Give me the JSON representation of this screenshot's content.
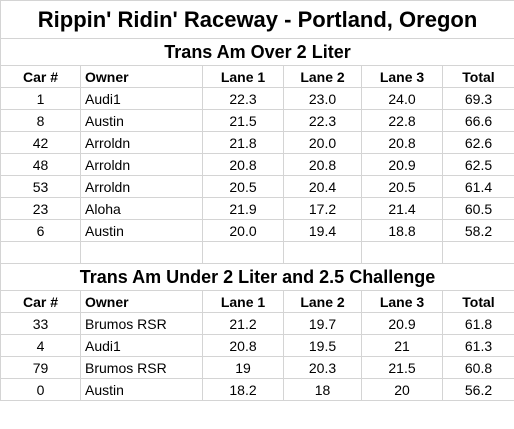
{
  "title": "Rippin' Ridin' Raceway - Portland, Oregon",
  "section1": {
    "heading": "Trans Am Over 2 Liter",
    "columns": [
      "Car #",
      "Owner",
      "Lane 1",
      "Lane 2",
      "Lane 3",
      "Total"
    ],
    "rows": [
      [
        "1",
        "Audi1",
        "22.3",
        "23.0",
        "24.0",
        "69.3"
      ],
      [
        "8",
        "Austin",
        "21.5",
        "22.3",
        "22.8",
        "66.6"
      ],
      [
        "42",
        "Arroldn",
        "21.8",
        "20.0",
        "20.8",
        "62.6"
      ],
      [
        "48",
        "Arroldn",
        "20.8",
        "20.8",
        "20.9",
        "62.5"
      ],
      [
        "53",
        "Arroldn",
        "20.5",
        "20.4",
        "20.5",
        "61.4"
      ],
      [
        "23",
        "Aloha",
        "21.9",
        "17.2",
        "21.4",
        "60.5"
      ],
      [
        "6",
        "Austin",
        "20.0",
        "19.4",
        "18.8",
        "58.2"
      ]
    ]
  },
  "section2": {
    "heading": "Trans Am Under 2 Liter and 2.5 Challenge",
    "columns": [
      "Car #",
      "Owner",
      "Lane 1",
      "Lane 2",
      "Lane 3",
      "Total"
    ],
    "rows": [
      [
        "33",
        "Brumos RSR",
        "21.2",
        "19.7",
        "20.9",
        "61.8"
      ],
      [
        "4",
        "Audi1",
        "20.8",
        "19.5",
        "21",
        "61.3"
      ],
      [
        "79",
        "Brumos RSR",
        "19",
        "20.3",
        "21.5",
        "60.8"
      ],
      [
        "0",
        "Austin",
        "18.2",
        "18",
        "20",
        "56.2"
      ]
    ]
  }
}
